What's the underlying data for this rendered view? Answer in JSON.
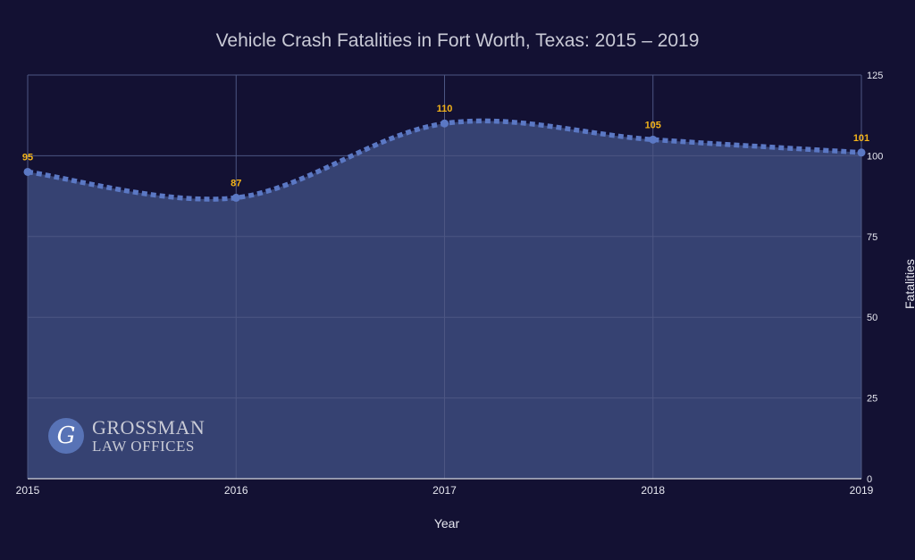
{
  "chart_data": {
    "type": "area",
    "title": "Vehicle Crash Fatalities in Fort Worth, Texas: 2015 – 2019",
    "xlabel": "Year",
    "ylabel": "Fatalities",
    "x": [
      2015,
      2016,
      2017,
      2018,
      2019
    ],
    "x_tick_labels": [
      "2015",
      "2016",
      "2017",
      "2018",
      "2019"
    ],
    "y_ticks": [
      0,
      25,
      50,
      75,
      100,
      125
    ],
    "ylim": [
      0,
      125
    ],
    "y_axis_side": "right",
    "grid": true,
    "series": [
      {
        "values": [
          95,
          87,
          110,
          105,
          101
        ],
        "data_labels": [
          "95",
          "87",
          "110",
          "105",
          "101"
        ]
      }
    ]
  },
  "logo": {
    "mark": "G",
    "line1": "GROSSMAN",
    "line2": "LAW OFFICES"
  },
  "colors": {
    "background": "#131133",
    "plot_area": "#364272",
    "line": "#5b78c4",
    "grid": "#4c5683",
    "data_label": "#f4b41a",
    "tick_text": "#e6e7f0"
  }
}
